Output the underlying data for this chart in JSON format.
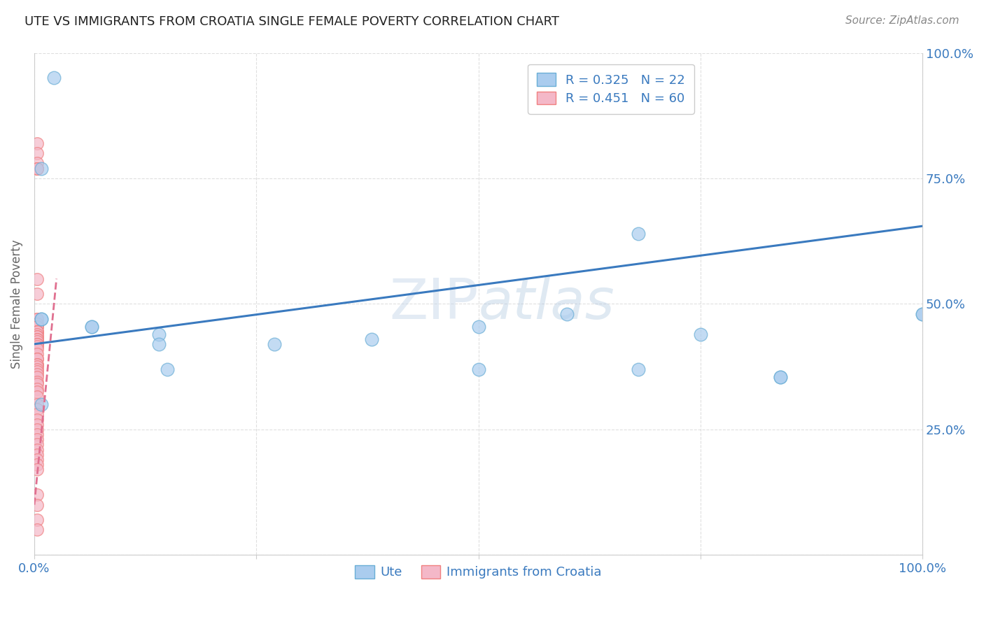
{
  "title": "UTE VS IMMIGRANTS FROM CROATIA SINGLE FEMALE POVERTY CORRELATION CHART",
  "source_text": "Source: ZipAtlas.com",
  "ylabel": "Single Female Poverty",
  "ytick_labels": [
    "",
    "25.0%",
    "50.0%",
    "75.0%",
    "100.0%"
  ],
  "legend_entries": [
    {
      "label": "R = 0.325   N = 22",
      "color": "#a8c4e0"
    },
    {
      "label": "R = 0.451   N = 60",
      "color": "#f4a7b9"
    }
  ],
  "ute_points_x": [
    0.022,
    0.008,
    0.008,
    0.008,
    0.065,
    0.065,
    0.14,
    0.14,
    0.27,
    0.5,
    0.5,
    0.68,
    0.68,
    0.84,
    0.84,
    1.0,
    1.0,
    0.008,
    0.15,
    0.38,
    0.6,
    0.75
  ],
  "ute_points_y": [
    0.95,
    0.77,
    0.47,
    0.47,
    0.455,
    0.455,
    0.44,
    0.42,
    0.42,
    0.455,
    0.37,
    0.64,
    0.37,
    0.355,
    0.355,
    0.48,
    0.48,
    0.3,
    0.37,
    0.43,
    0.48,
    0.44
  ],
  "croatia_points_x": [
    0.003,
    0.003,
    0.003,
    0.003,
    0.003,
    0.003,
    0.003,
    0.003,
    0.003,
    0.003,
    0.003,
    0.003,
    0.003,
    0.003,
    0.003,
    0.003,
    0.003,
    0.003,
    0.003,
    0.003,
    0.003,
    0.003,
    0.003,
    0.003,
    0.003,
    0.003,
    0.003,
    0.003,
    0.003,
    0.003,
    0.003,
    0.003,
    0.003,
    0.003,
    0.003,
    0.003,
    0.003,
    0.003,
    0.003,
    0.003,
    0.003,
    0.003,
    0.003,
    0.003,
    0.003,
    0.003,
    0.003,
    0.003,
    0.003,
    0.003,
    0.003,
    0.003,
    0.003,
    0.003,
    0.003,
    0.003,
    0.003,
    0.003,
    0.003,
    0.003
  ],
  "croatia_points_y": [
    0.82,
    0.8,
    0.78,
    0.77,
    0.77,
    0.77,
    0.55,
    0.52,
    0.47,
    0.47,
    0.46,
    0.46,
    0.455,
    0.455,
    0.445,
    0.445,
    0.445,
    0.44,
    0.435,
    0.435,
    0.43,
    0.43,
    0.425,
    0.42,
    0.42,
    0.415,
    0.41,
    0.4,
    0.39,
    0.39,
    0.38,
    0.38,
    0.375,
    0.37,
    0.365,
    0.36,
    0.355,
    0.345,
    0.34,
    0.33,
    0.325,
    0.315,
    0.3,
    0.29,
    0.28,
    0.27,
    0.26,
    0.25,
    0.24,
    0.23,
    0.22,
    0.21,
    0.2,
    0.19,
    0.18,
    0.17,
    0.12,
    0.1,
    0.07,
    0.05
  ],
  "ute_color": "#6aaed6",
  "ute_color_fill": "#aaccee",
  "croatia_color": "#f08080",
  "croatia_color_fill": "#f4b8c8",
  "ute_line_color": "#3a7abf",
  "ute_line_start_x": 0.0,
  "ute_line_end_x": 1.0,
  "ute_line_start_y": 0.42,
  "ute_line_end_y": 0.655,
  "croatia_line_color": "#e07090",
  "croatia_line_start_x": 0.0,
  "croatia_line_end_x": 0.025,
  "croatia_line_start_y": 0.1,
  "croatia_line_end_y": 0.55,
  "watermark_part1": "ZIP",
  "watermark_part2": "atlas",
  "background_color": "#ffffff",
  "xlim": [
    0.0,
    1.0
  ],
  "ylim": [
    0.0,
    1.0
  ]
}
